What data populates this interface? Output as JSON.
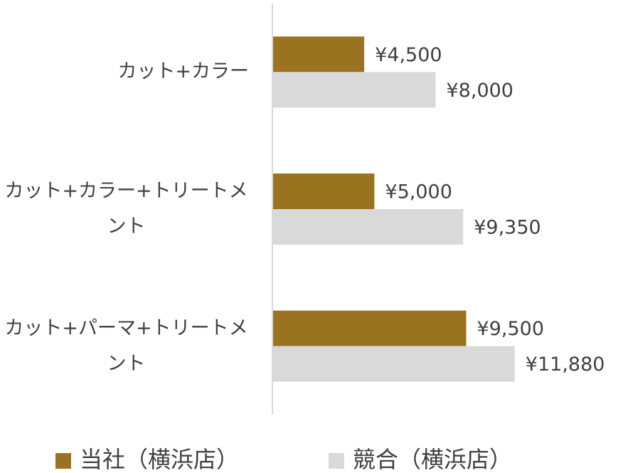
{
  "chart_data": {
    "type": "bar",
    "orientation": "horizontal",
    "categories": [
      "カット+カラー",
      "カット+カラー+トリートメント",
      "カット+パーマ+トリートメント"
    ],
    "series": [
      {
        "name": "当社（横浜店）",
        "color": "#9a7320",
        "values": [
          4500,
          5000,
          9500
        ],
        "value_labels": [
          "¥4,500",
          "¥5,000",
          "¥9,500"
        ]
      },
      {
        "name": "競合（横浜店）",
        "color": "#d9d9d9",
        "values": [
          8000,
          9350,
          11880
        ],
        "value_labels": [
          "¥8,000",
          "¥9,350",
          "¥11,880"
        ]
      }
    ],
    "xlim": [
      0,
      16000
    ],
    "grid": false,
    "legend": "bottom"
  }
}
